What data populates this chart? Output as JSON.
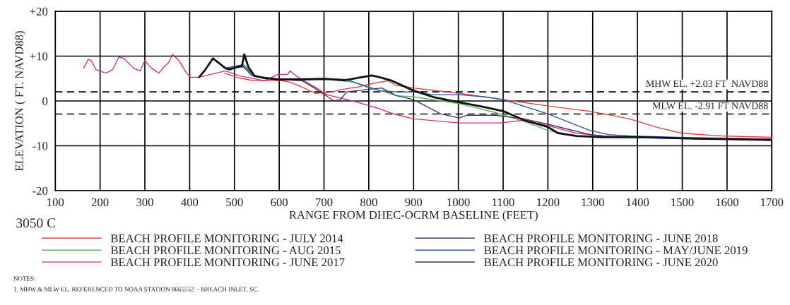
{
  "chart_data": {
    "type": "line",
    "xlabel": "RANGE FROM DHEC-OCRM BASELINE (FEET)",
    "ylabel": "ELEVATION ( FT. NAVD88)",
    "xlim": [
      100,
      1700
    ],
    "xticks": [
      100,
      200,
      300,
      400,
      500,
      600,
      700,
      800,
      900,
      1000,
      1100,
      1200,
      1300,
      1400,
      1500,
      1600,
      1700
    ],
    "ylim": [
      -20,
      20
    ],
    "yticks": [
      {
        "value": -20,
        "label": "-20"
      },
      {
        "value": -10,
        "label": "-10"
      },
      0,
      {
        "value": 10,
        "label": "+10"
      },
      {
        "value": 20,
        "label": "+20"
      }
    ],
    "grid": true,
    "legend": "bottom",
    "line_style": "solid",
    "marker": "none",
    "ref_lines": [
      {
        "axis": "y",
        "value": 2.03,
        "label": "MHW EL. +2.03 FT  NAVD88",
        "color": "#000000",
        "line_style": "dashed"
      },
      {
        "axis": "y",
        "value": -2.91,
        "label": "MLW EL. -2.91 FT NAVD88",
        "color": "#000000",
        "line_style": "dashed"
      }
    ],
    "annotations": [
      "3050 C",
      "NOTES:",
      "1. MHW & MLW EL. REFERENCED TO NOAA STATION 8665552  - BREACH INLET, SC."
    ],
    "series": [
      {
        "name": "BEACH PROFILE MONITORING - JULY 2014",
        "color": "#d9443f",
        "x": [
          478,
          511,
          539,
          573,
          601,
          624,
          651,
          680,
          719,
          736,
          775,
          808,
          843,
          861,
          900,
          1002,
          1101,
          1206,
          1294,
          1382,
          1441,
          1499,
          1587,
          1700
        ],
        "values": [
          6.2,
          5.1,
          4.6,
          4.5,
          4.6,
          4.2,
          3.1,
          1.7,
          2.0,
          2.5,
          3.1,
          3.9,
          4.5,
          3.5,
          2.9,
          1.7,
          0.3,
          -1.2,
          -2.3,
          -4.0,
          -5.8,
          -7.2,
          -7.8,
          -8.1
        ]
      },
      {
        "name": "BEACH PROFILE MONITORING - AUG 2015",
        "color": "#5cb85c",
        "x": [
          478,
          520,
          545,
          600,
          700,
          766,
          861,
          900,
          1002,
          1083,
          1147,
          1200,
          1264
        ],
        "values": [
          7.3,
          7.8,
          5.4,
          4.9,
          5.0,
          4.2,
          1.2,
          0.9,
          -0.6,
          -2.6,
          -4.6,
          -6.6,
          -7.8
        ]
      },
      {
        "name": "BEACH PROFILE MONITORING - JUNE 2017",
        "color": "#d0308a",
        "x": [
          163,
          174,
          180,
          191,
          213,
          228,
          242,
          253,
          275,
          289,
          300,
          315,
          331,
          343,
          354,
          362,
          376,
          393,
          402,
          421,
          433,
          452,
          466,
          480,
          511,
          567,
          596,
          619,
          624,
          642,
          680,
          706,
          764,
          823,
          852,
          900,
          1002,
          1095,
          1147,
          1200,
          1264,
          1323,
          1410,
          1700
        ],
        "values": [
          7.3,
          9.3,
          9.0,
          7.0,
          6.2,
          7.0,
          9.8,
          9.5,
          7.3,
          6.7,
          9.0,
          7.3,
          6.2,
          7.6,
          8.7,
          10.4,
          9.0,
          6.2,
          5.3,
          5.3,
          null,
          null,
          null,
          6.7,
          5.6,
          4.5,
          5.9,
          5.9,
          6.7,
          5.3,
          3.1,
          1.4,
          0.0,
          -1.7,
          -2.8,
          -4.0,
          -4.9,
          -4.9,
          -4.3,
          -5.5,
          -7.2,
          -7.8,
          -8.1,
          -8.4
        ]
      },
      {
        "name": "BEACH PROFILE MONITORING - JUNE 2018",
        "color": "#4b2f66",
        "x": [
          480,
          520,
          540,
          600,
          651,
          680,
          706,
          722,
          736,
          751,
          790,
          829,
          861,
          900,
          961,
          1002,
          1019,
          1083,
          1147,
          1200,
          1294,
          1352,
          1700
        ],
        "values": [
          7.3,
          7.6,
          5.6,
          4.8,
          4.5,
          2.8,
          1.1,
          0.0,
          0.3,
          2.0,
          2.5,
          2.9,
          1.2,
          0.3,
          -2.9,
          -3.8,
          -3.2,
          -3.2,
          -4.0,
          -5.2,
          -7.5,
          -8.1,
          -8.7
        ]
      },
      {
        "name": "BEACH PROFILE MONITORING - MAY/JUNE 2019",
        "color": "#2756a6",
        "x": [
          480,
          520,
          545,
          600,
          700,
          750,
          775,
          800,
          826,
          861,
          900,
          943,
          1002,
          1060,
          1101,
          1200,
          1294,
          1335,
          1382,
          1700
        ],
        "values": [
          7.3,
          8.1,
          5.6,
          4.8,
          5.0,
          4.8,
          3.9,
          3.0,
          2.3,
          2.0,
          2.0,
          1.4,
          1.4,
          0.9,
          0.3,
          -2.9,
          -6.6,
          -7.5,
          -7.8,
          -8.7
        ]
      },
      {
        "name": "BEACH PROFILE MONITORING - JUNE 2020",
        "color": "#111111",
        "x": [
          421,
          433,
          452,
          466,
          480,
          489,
          517,
          522,
          531,
          545,
          567,
          601,
          651,
          706,
          745,
          784,
          807,
          824,
          852,
          900,
          943,
          1002,
          1060,
          1101,
          1147,
          1200,
          1223,
          1264,
          1323,
          1410,
          1527,
          1644,
          1700
        ],
        "values": [
          5.3,
          6.7,
          9.5,
          8.4,
          7.3,
          7.0,
          7.9,
          10.4,
          7.6,
          5.6,
          5.1,
          4.8,
          4.8,
          4.9,
          4.6,
          5.3,
          5.7,
          5.3,
          4.5,
          2.3,
          0.9,
          -0.3,
          -1.4,
          -2.3,
          -4.3,
          -5.8,
          -7.2,
          -7.8,
          -8.1,
          -8.1,
          -8.4,
          -8.6,
          -8.7
        ]
      }
    ]
  }
}
